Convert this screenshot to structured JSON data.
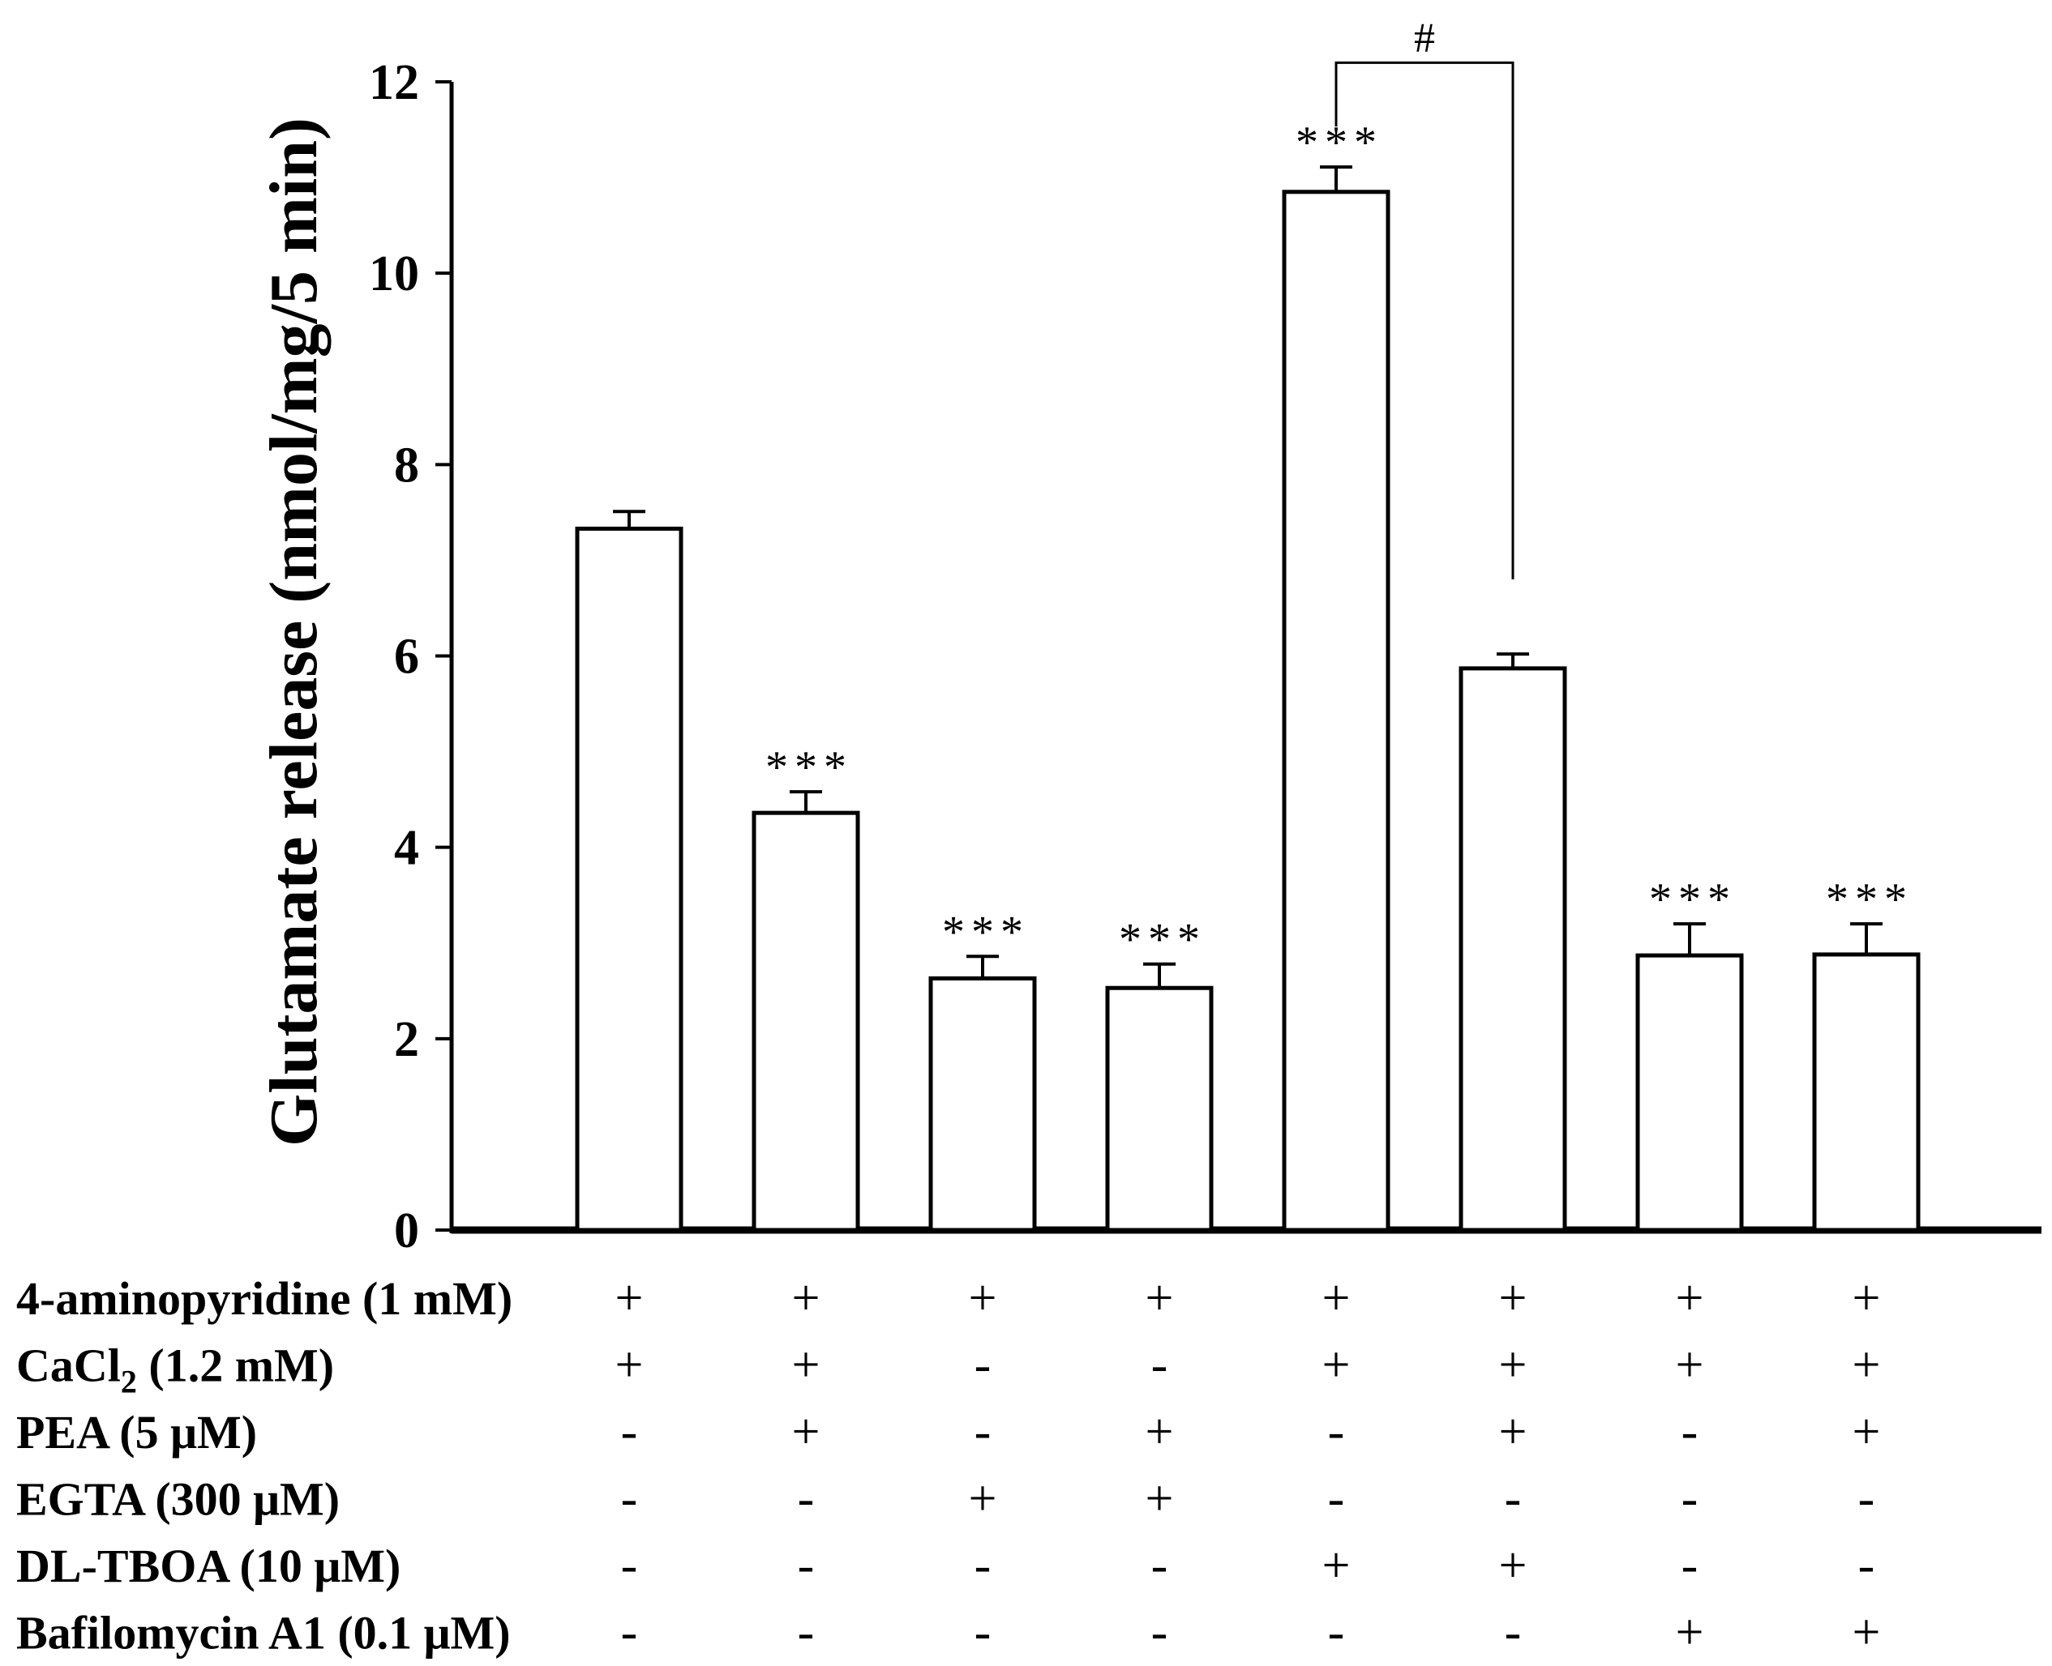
{
  "chart_data": {
    "type": "bar",
    "ylabel": "Glutamate release (nmol/mg/5 min)",
    "ylim": [
      0,
      12
    ],
    "yticks": [
      0,
      2,
      4,
      6,
      8,
      10,
      12
    ],
    "values": [
      7.33,
      4.36,
      2.63,
      2.53,
      10.85,
      5.87,
      2.87,
      2.88
    ],
    "errors": [
      0.18,
      0.22,
      0.23,
      0.25,
      0.26,
      0.15,
      0.33,
      0.32
    ],
    "significance": [
      "",
      "***",
      "***",
      "***",
      "***",
      "",
      "***",
      "***"
    ],
    "comparison": {
      "from_bar": 4,
      "to_bar": 5,
      "label": "#",
      "y": 12.2,
      "end_y": 6.8
    },
    "conditions": [
      {
        "label": "4-aminopyridine (1 mM)",
        "values": [
          "+",
          "+",
          "+",
          "+",
          "+",
          "+",
          "+",
          "+"
        ]
      },
      {
        "label": "CaCl",
        "sub": "2",
        "label_tail": " (1.2 mM)",
        "values": [
          "+",
          "+",
          "-",
          "-",
          "+",
          "+",
          "+",
          "+"
        ]
      },
      {
        "label": "PEA (5 μM)",
        "values": [
          "-",
          "+",
          "-",
          "+",
          "-",
          "+",
          "-",
          "+"
        ]
      },
      {
        "label": "EGTA (300 μM)",
        "values": [
          "-",
          "-",
          "+",
          "+",
          "-",
          "-",
          "-",
          "-"
        ]
      },
      {
        "label": "DL-TBOA (10 μM)",
        "values": [
          "-",
          "-",
          "-",
          "-",
          "+",
          "+",
          "-",
          "-"
        ]
      },
      {
        "label": "Bafilomycin A1 (0.1 μM)",
        "values": [
          "-",
          "-",
          "-",
          "-",
          "-",
          "-",
          "+",
          "+"
        ]
      }
    ],
    "bar_fill": "#ffffff",
    "bar_stroke": "#000000"
  }
}
